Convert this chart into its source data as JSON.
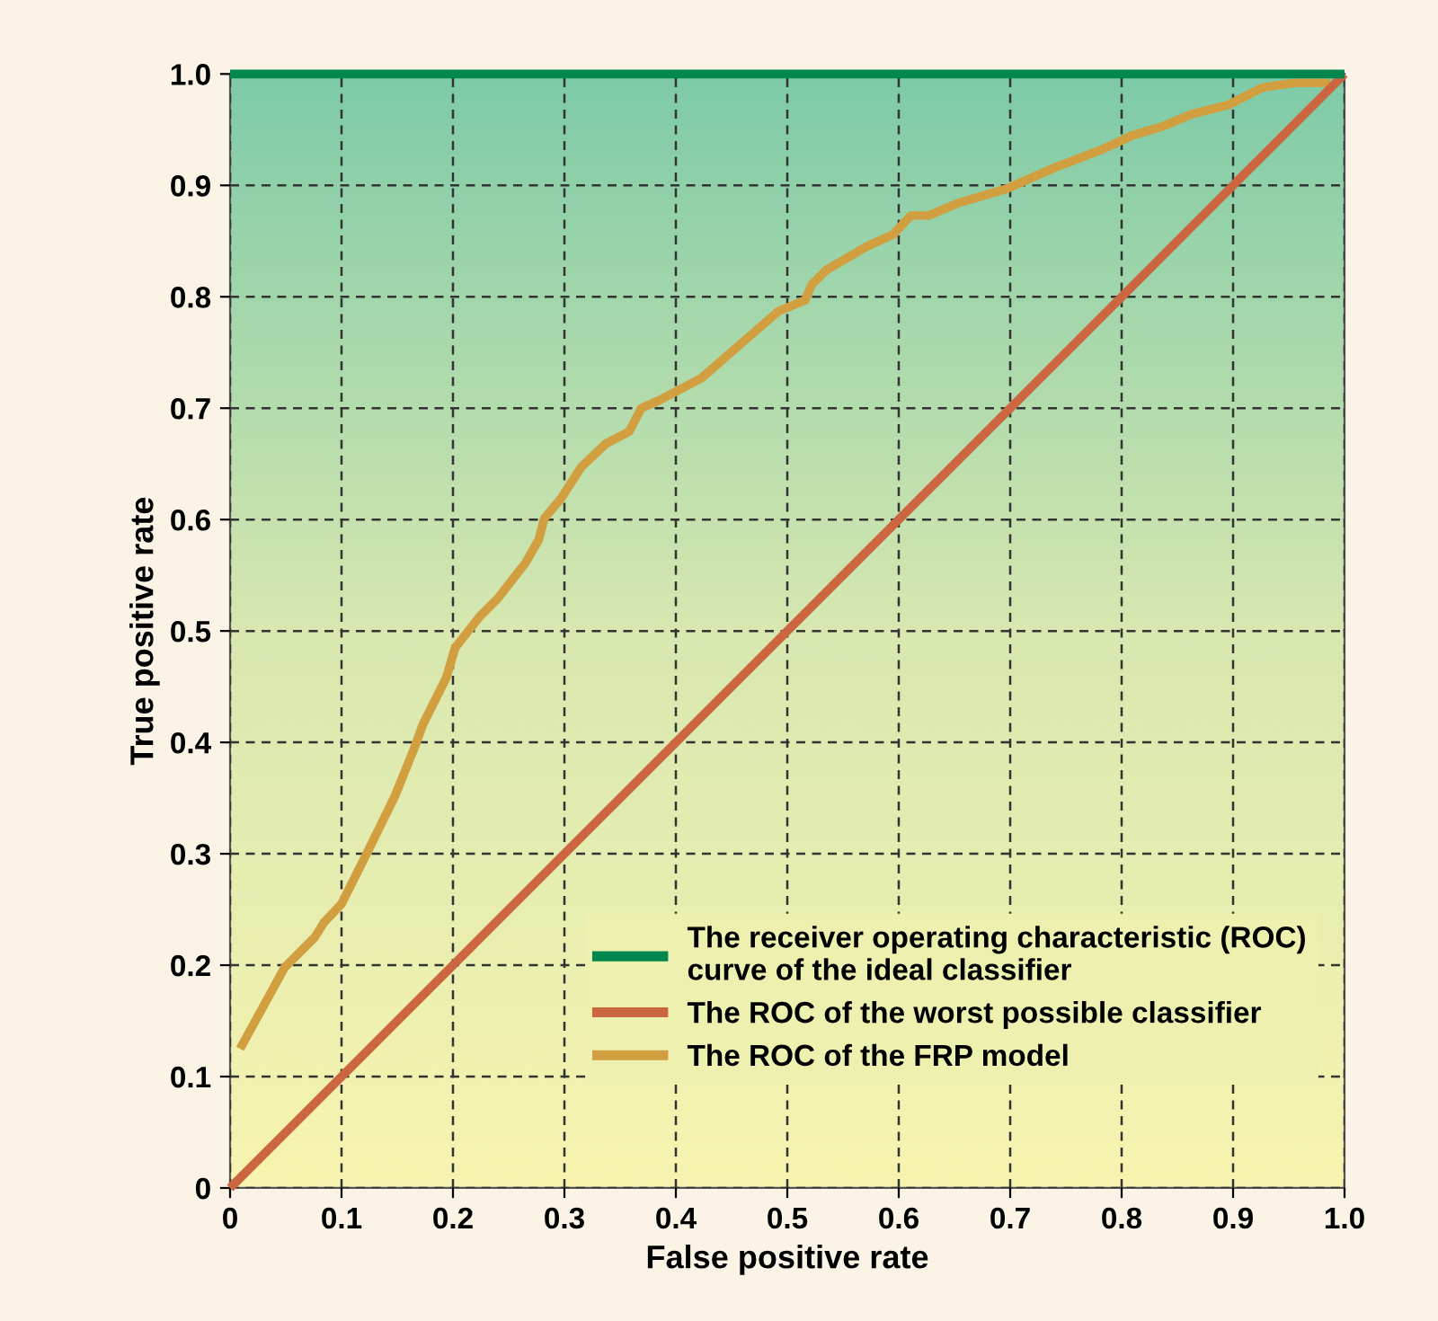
{
  "chart_data": {
    "type": "line",
    "xlabel": "False positive rate",
    "ylabel": "True positive rate",
    "xlim": [
      0,
      1
    ],
    "ylim": [
      0,
      1
    ],
    "xticks": [
      0,
      0.1,
      0.2,
      0.3,
      0.4,
      0.5,
      0.6,
      0.7,
      0.8,
      0.9,
      {
        "value": 1,
        "label": "1.0"
      }
    ],
    "yticks": [
      0,
      0.1,
      0.2,
      0.3,
      0.4,
      0.5,
      0.6,
      0.7,
      0.8,
      0.9,
      {
        "value": 1,
        "label": "1.0"
      }
    ],
    "grid": true,
    "legend": "bottom right",
    "line_style": "solid",
    "marker": "none",
    "series": [
      {
        "name": "The receiver operating characteristic (ROC) curve of the ideal classifier",
        "color": "#00874f",
        "x": [
          0,
          1
        ],
        "values": [
          1,
          1
        ]
      },
      {
        "name": "The ROC of the worst possible classifier",
        "color": "#cc6640",
        "x": [
          0,
          1
        ],
        "values": [
          0,
          1
        ]
      },
      {
        "name": "The ROC of the FRP model",
        "color": "#d19f40",
        "x": [
          0.009,
          0.049,
          0.076,
          0.084,
          0.1,
          0.124,
          0.148,
          0.165,
          0.173,
          0.194,
          0.202,
          0.224,
          0.24,
          0.265,
          0.277,
          0.282,
          0.297,
          0.315,
          0.337,
          0.358,
          0.369,
          0.385,
          0.423,
          0.455,
          0.492,
          0.516,
          0.522,
          0.535,
          0.571,
          0.595,
          0.611,
          0.627,
          0.653,
          0.697,
          0.74,
          0.782,
          0.81,
          0.837,
          0.863,
          0.895,
          0.927,
          0.955,
          0.987
        ],
        "values": [
          0.125,
          0.198,
          0.225,
          0.238,
          0.255,
          0.303,
          0.352,
          0.394,
          0.416,
          0.458,
          0.485,
          0.513,
          0.529,
          0.561,
          0.582,
          0.601,
          0.619,
          0.647,
          0.668,
          0.679,
          0.7,
          0.707,
          0.727,
          0.755,
          0.787,
          0.797,
          0.811,
          0.824,
          0.845,
          0.856,
          0.873,
          0.873,
          0.884,
          0.897,
          0.916,
          0.932,
          0.945,
          0.953,
          0.964,
          0.972,
          0.988,
          0.992,
          0.992
        ]
      }
    ]
  }
}
